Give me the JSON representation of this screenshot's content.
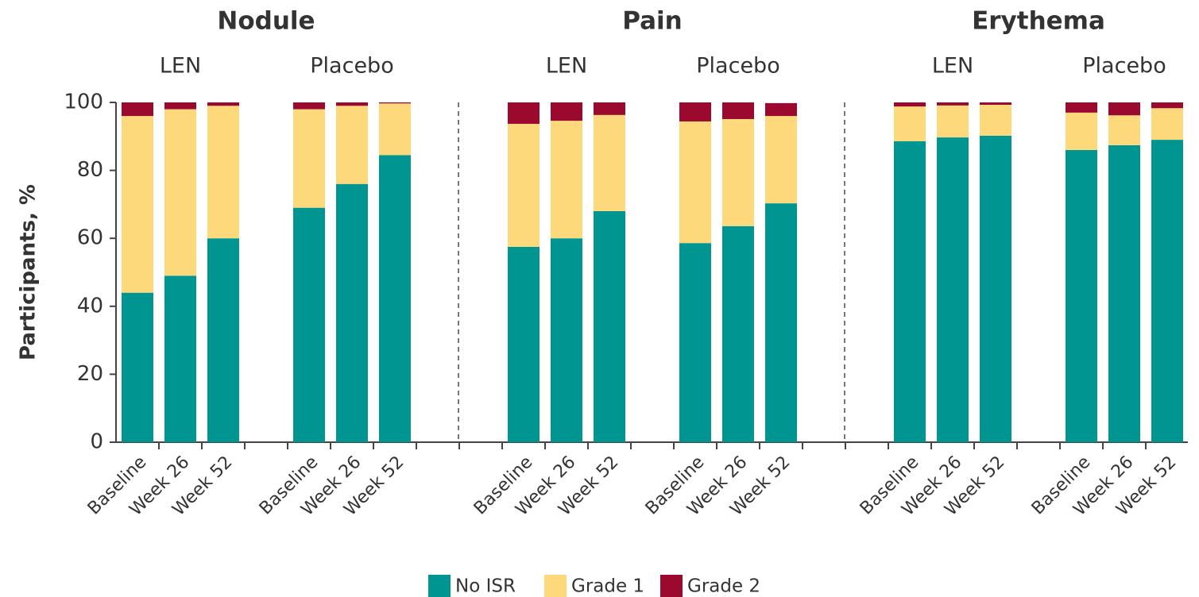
{
  "chart_data": {
    "type": "bar",
    "stacked": true,
    "panels": [
      "Nodule",
      "Pain",
      "Erythema"
    ],
    "groups": [
      "LEN",
      "Placebo",
      "LEN",
      "Placebo",
      "LEN",
      "Placebo"
    ],
    "categories": [
      "Baseline",
      "Week 26",
      "Week 52",
      "Baseline",
      "Week 26",
      "Week 52",
      "Baseline",
      "Week 26",
      "Week 52",
      "Baseline",
      "Week 26",
      "Week 52",
      "Baseline",
      "Week 26",
      "Week 52",
      "Baseline",
      "Week 26",
      "Week 52"
    ],
    "ylabel": "Participants, %",
    "ylim": [
      0,
      100
    ],
    "yticks": [
      0,
      20,
      40,
      60,
      80,
      100
    ],
    "legend": "bottom",
    "series": [
      {
        "name": "No ISR",
        "color": "#009591",
        "values": [
          44,
          49,
          60,
          69,
          76,
          84.5,
          57.5,
          60,
          68,
          58.6,
          63.6,
          70.3,
          88.6,
          89.7,
          90.2,
          86,
          87.4,
          89
        ]
      },
      {
        "name": "Grade 1",
        "color": "#fdd97c",
        "values": [
          52,
          49,
          39,
          29,
          23,
          15.2,
          36.2,
          34.6,
          28.3,
          35.8,
          31.5,
          25.7,
          10.2,
          9.4,
          9.1,
          11,
          8.8,
          9.3
        ]
      },
      {
        "name": "Grade 2",
        "color": "#9b0a2e",
        "values": [
          4,
          2,
          1,
          2,
          1,
          0.3,
          6.3,
          5.4,
          3.7,
          5.6,
          4.9,
          3.8,
          1.2,
          0.9,
          0.7,
          3,
          3.8,
          1.7
        ]
      }
    ]
  }
}
